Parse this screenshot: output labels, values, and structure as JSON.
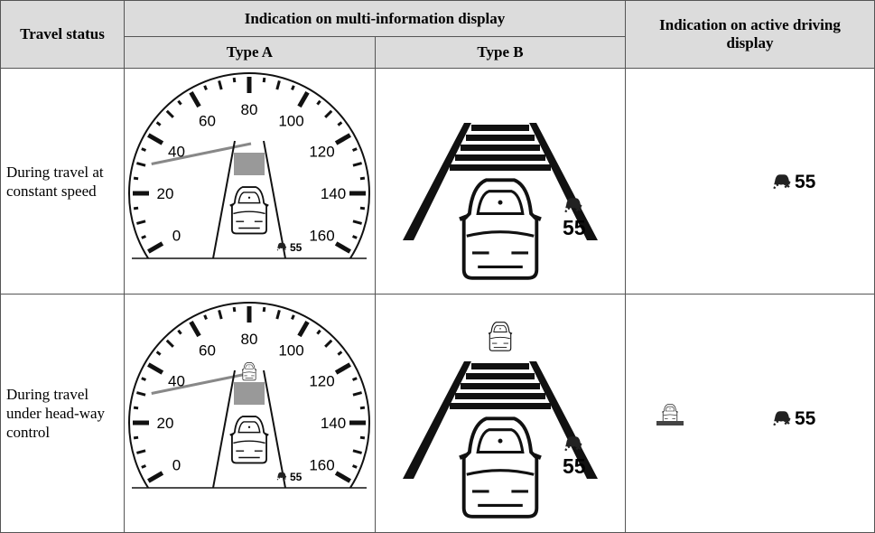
{
  "table": {
    "header": {
      "travel_status": "Travel status",
      "mid": "Indication on multi-information display",
      "type_a": "Type A",
      "type_b": "Type B",
      "active": "Indication on active driving display"
    },
    "rows": [
      {
        "status": "During travel at constant speed"
      },
      {
        "status": "During travel under head-way control"
      }
    ]
  },
  "gauge_labels": [
    "0",
    "20",
    "40",
    "60",
    "80",
    "100",
    "120",
    "140",
    "160"
  ],
  "set_speed": "55"
}
